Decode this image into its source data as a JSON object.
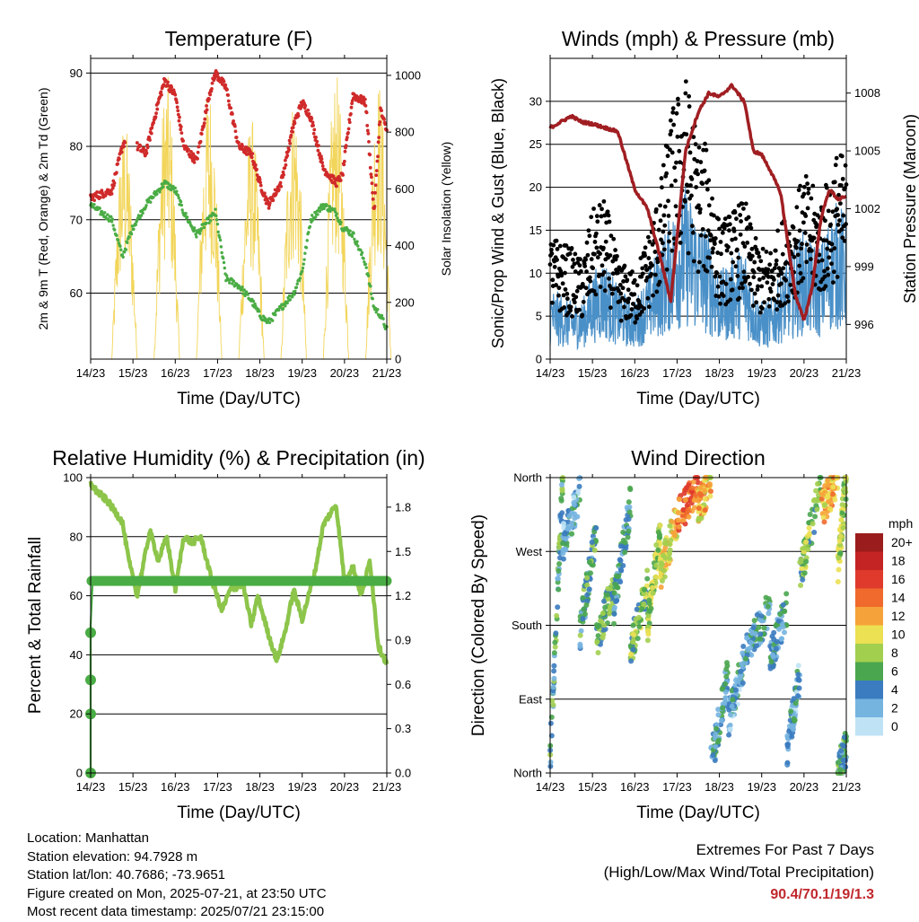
{
  "x_ticks": [
    "14/23",
    "15/23",
    "16/23",
    "17/23",
    "18/23",
    "19/23",
    "20/23",
    "21/23"
  ],
  "panels": {
    "temperature": {
      "title": "Temperature (F)",
      "ylabel_left": "2m & 9m T (Red, Orange) & 2m Td (Green)",
      "ylabel_right": "Solar Insolation (Yellow)",
      "xlabel": "Time (Day/UTC)",
      "left_ticks": [
        "60",
        "70",
        "80",
        "90"
      ],
      "right_ticks": [
        "0",
        "200",
        "400",
        "600",
        "800",
        "1000"
      ]
    },
    "winds": {
      "title": "Winds (mph) & Pressure (mb)",
      "ylabel_left": "Sonic/Prop Wind & Gust (Blue, Black)",
      "ylabel_right": "Station Pressure (Maroon)",
      "xlabel": "Time (Day/UTC)",
      "left_ticks": [
        "0",
        "5",
        "10",
        "15",
        "20",
        "25",
        "30"
      ],
      "right_ticks": [
        "996",
        "999",
        "1002",
        "1005",
        "1008"
      ]
    },
    "humidity": {
      "title": "Relative Humidity (%) & Precipitation (in)",
      "ylabel_left": "Percent & Total Rainfall",
      "xlabel": "Time (Day/UTC)",
      "left_ticks": [
        "0",
        "20",
        "40",
        "60",
        "80",
        "100"
      ],
      "right_ticks": [
        "0.0",
        "0.3",
        "0.6",
        "0.9",
        "1.2",
        "1.5",
        "1.8"
      ]
    },
    "direction": {
      "title": "Wind Direction",
      "ylabel_left": "Direction (Colored By Speed)",
      "xlabel": "Time (Day/UTC)",
      "dir_ticks": [
        "North",
        "East",
        "South",
        "West",
        "North"
      ],
      "colorbar_title": "mph",
      "colorbar_labels": [
        "20+",
        "18",
        "16",
        "14",
        "12",
        "10",
        "8",
        "6",
        "4",
        "2",
        "0"
      ],
      "colorbar_colors": [
        "#9b1c1c",
        "#c42424",
        "#df3a2c",
        "#ef6a2c",
        "#f6a23a",
        "#ece053",
        "#a3cf4f",
        "#4aa64f",
        "#3b7bbf",
        "#76b4e0",
        "#bfe3f5"
      ]
    }
  },
  "footer": {
    "location": "Location: Manhattan",
    "elevation": "Station elevation: 94.7928 m",
    "latlon": "Station lat/lon: 40.7686; -73.9651",
    "created": "Figure created on Mon, 2025-07-21, at 23:50 UTC",
    "recent": "Most recent data timestamp: 2025/07/21 23:15:00",
    "extremes_title": "Extremes For Past 7 Days",
    "extremes_sub": "(High/Low/Max Wind/Total Precipitation)",
    "extremes_value": "90.4/70.1/19/1.3"
  },
  "chart_data": [
    {
      "type": "line",
      "title": "Temperature (F)",
      "xlabel": "Time (Day/UTC)",
      "ylabel": "2m & 9m T (Red, Orange) & 2m Td (Green)",
      "y2label": "Solar Insolation (Yellow)",
      "x": [
        14.0,
        14.5,
        14.75,
        15.0,
        15.1,
        15.3,
        15.6,
        15.75,
        16.0,
        16.2,
        16.5,
        16.8,
        16.95,
        17.2,
        17.5,
        17.8,
        18.0,
        18.2,
        18.5,
        18.8,
        19.0,
        19.2,
        19.5,
        19.8,
        19.95,
        20.2,
        20.5,
        20.7,
        20.85,
        21.0
      ],
      "series": [
        {
          "name": "2m T",
          "color": "#d02a2a",
          "axis": "left",
          "values": [
            73,
            74,
            80,
            83,
            80,
            79,
            86,
            89,
            87,
            80,
            78,
            87,
            90,
            88,
            80,
            79,
            75,
            72,
            75,
            83,
            86,
            84,
            77,
            75,
            76,
            87,
            86,
            71,
            85,
            82
          ]
        },
        {
          "name": "2m Td",
          "color": "#4aac45",
          "axis": "left",
          "values": [
            72,
            70,
            65,
            69,
            70,
            72,
            74,
            75,
            74,
            71,
            68,
            70,
            71,
            62,
            61,
            59,
            57,
            56,
            58,
            60,
            63,
            70,
            72,
            71,
            69,
            68,
            64,
            58,
            57,
            55
          ]
        },
        {
          "name": "Solar Insolation",
          "color": "#f2d55a",
          "axis": "right",
          "peaks_x": [
            14.8,
            15.8,
            16.8,
            17.8,
            18.8,
            19.8,
            20.8
          ],
          "peaks": [
            850,
            1010,
            980,
            860,
            940,
            1010,
            1000
          ]
        }
      ],
      "ylim": [
        51,
        92
      ],
      "y2lim": [
        0,
        1060
      ]
    },
    {
      "type": "line",
      "title": "Winds (mph) & Pressure (mb)",
      "xlabel": "Time (Day/UTC)",
      "ylabel": "Sonic/Prop Wind & Gust (Blue, Black)",
      "y2label": "Station Pressure (Maroon)",
      "x": [
        14.0,
        14.5,
        14.75,
        15.0,
        15.3,
        15.6,
        16.0,
        16.3,
        16.6,
        16.85,
        17.2,
        17.5,
        17.75,
        18.0,
        18.3,
        18.6,
        18.8,
        19.0,
        19.2,
        19.45,
        19.6,
        19.8,
        20.0,
        20.2,
        20.4,
        20.6,
        20.8,
        21.0
      ],
      "series": [
        {
          "name": "Gust",
          "color": "#000000",
          "values": [
            10,
            9,
            8,
            12,
            13,
            8,
            7,
            10,
            14,
            20,
            23,
            18,
            17,
            11,
            12,
            13,
            10,
            9,
            9,
            11,
            12,
            13,
            15,
            14,
            13,
            15,
            17,
            16
          ]
        },
        {
          "name": "Wind",
          "color": "#4a90c8",
          "values": [
            5,
            4,
            4,
            6,
            7,
            5,
            4,
            6,
            8,
            10,
            12,
            10,
            9,
            6,
            7,
            8,
            5,
            4,
            4,
            6,
            7,
            8,
            9,
            8,
            8,
            10,
            11,
            10
          ]
        },
        {
          "name": "Station Pressure",
          "color": "#a01e22",
          "axis": "right",
          "values": [
            1006.2,
            1006.8,
            1006.5,
            1006.4,
            1006.2,
            1006.0,
            1003.0,
            1002.0,
            999.5,
            997.2,
            1005.0,
            1007.0,
            1008.0,
            1007.8,
            1008.4,
            1007.5,
            1005.0,
            1004.8,
            1004.0,
            1002.8,
            1000.5,
            997.5,
            996.2,
            998.0,
            1001.5,
            1003.0,
            1002.5,
            1002.6
          ]
        }
      ],
      "ylim": [
        0,
        35
      ],
      "y2lim": [
        994.2,
        1009.8
      ]
    },
    {
      "type": "line",
      "title": "Relative Humidity (%) & Precipitation (in)",
      "xlabel": "Time (Day/UTC)",
      "ylabel": "Percent & Total Rainfall",
      "x": [
        14.0,
        14.1,
        14.4,
        14.75,
        14.9,
        15.1,
        15.4,
        15.6,
        15.8,
        16.0,
        16.2,
        16.4,
        16.6,
        16.85,
        17.1,
        17.3,
        17.6,
        17.8,
        17.95,
        18.2,
        18.4,
        18.6,
        18.8,
        19.0,
        19.3,
        19.5,
        19.8,
        20.0,
        20.2,
        20.4,
        20.6,
        20.8,
        21.0
      ],
      "series": [
        {
          "name": "Relative Humidity",
          "color": "#8cc54a",
          "values": [
            98,
            96,
            92,
            85,
            72,
            60,
            82,
            72,
            80,
            62,
            80,
            78,
            80,
            66,
            55,
            62,
            64,
            50,
            60,
            47,
            38,
            48,
            62,
            52,
            68,
            84,
            91,
            65,
            70,
            60,
            72,
            43,
            37
          ]
        },
        {
          "name": "Total Rainfall",
          "color": "#4aac45",
          "axis": "right",
          "values": [
            0.0,
            0.42,
            0.65,
            1.0,
            1.32,
            1.32,
            1.32,
            1.32,
            1.32,
            1.32,
            1.32,
            1.32,
            1.32,
            1.32,
            1.32,
            1.32,
            1.32,
            1.32,
            1.32,
            1.32,
            1.32,
            1.32,
            1.32,
            1.32,
            1.32,
            1.32,
            1.32,
            1.32,
            1.32,
            1.32,
            1.32,
            1.32,
            1.32
          ],
          "x": [
            14.0,
            14.0,
            14.0,
            14.0,
            14.05,
            15.1,
            15.4,
            15.6,
            15.8,
            16.0,
            16.2,
            16.4,
            16.6,
            16.85,
            17.1,
            17.3,
            17.6,
            17.8,
            17.95,
            18.2,
            18.4,
            18.6,
            18.8,
            19.0,
            19.3,
            19.5,
            19.8,
            20.0,
            20.2,
            20.4,
            20.6,
            20.8,
            21.0
          ]
        }
      ],
      "ylim": [
        0,
        100
      ],
      "y2lim": [
        0,
        2.0
      ]
    },
    {
      "type": "scatter",
      "title": "Wind Direction",
      "xlabel": "Time (Day/UTC)",
      "ylabel": "Direction (Colored By Speed)",
      "ylim": [
        0,
        360
      ],
      "colorbar": {
        "label": "mph",
        "range": [
          0,
          20
        ]
      },
      "clusters": [
        {
          "x0": 14.0,
          "x1": 14.3,
          "dir0": 20,
          "dir1": 360,
          "speed": 5
        },
        {
          "x0": 14.3,
          "x1": 14.7,
          "dir0": 280,
          "dir1": 340,
          "speed": 3
        },
        {
          "x0": 14.7,
          "x1": 15.1,
          "dir0": 170,
          "dir1": 300,
          "speed": 5
        },
        {
          "x0": 15.1,
          "x1": 15.5,
          "dir0": 160,
          "dir1": 230,
          "speed": 6
        },
        {
          "x0": 15.5,
          "x1": 15.9,
          "dir0": 200,
          "dir1": 330,
          "speed": 4
        },
        {
          "x0": 15.9,
          "x1": 16.3,
          "dir0": 150,
          "dir1": 230,
          "speed": 7
        },
        {
          "x0": 16.3,
          "x1": 16.6,
          "dir0": 180,
          "dir1": 290,
          "speed": 8
        },
        {
          "x0": 16.6,
          "x1": 17.0,
          "dir0": 240,
          "dir1": 310,
          "speed": 10
        },
        {
          "x0": 17.0,
          "x1": 17.5,
          "dir0": 310,
          "dir1": 350,
          "speed": 14
        },
        {
          "x0": 17.5,
          "x1": 17.8,
          "dir0": 320,
          "dir1": 360,
          "speed": 11
        },
        {
          "x0": 17.8,
          "x1": 18.2,
          "dir0": 10,
          "dir1": 120,
          "speed": 4
        },
        {
          "x0": 18.2,
          "x1": 18.6,
          "dir0": 60,
          "dir1": 140,
          "speed": 3
        },
        {
          "x0": 18.6,
          "x1": 19.2,
          "dir0": 150,
          "dir1": 200,
          "speed": 4
        },
        {
          "x0": 19.2,
          "x1": 19.6,
          "dir0": 140,
          "dir1": 200,
          "speed": 4
        },
        {
          "x0": 19.6,
          "x1": 19.9,
          "dir0": 30,
          "dir1": 120,
          "speed": 3
        },
        {
          "x0": 19.9,
          "x1": 20.4,
          "dir0": 240,
          "dir1": 350,
          "speed": 7
        },
        {
          "x0": 20.4,
          "x1": 20.8,
          "dir0": 320,
          "dir1": 360,
          "speed": 11
        },
        {
          "x0": 20.8,
          "x1": 21.0,
          "dir0": 250,
          "dir1": 360,
          "speed": 8
        },
        {
          "x0": 20.8,
          "x1": 21.0,
          "dir0": 0,
          "dir1": 30,
          "speed": 5
        }
      ]
    }
  ]
}
